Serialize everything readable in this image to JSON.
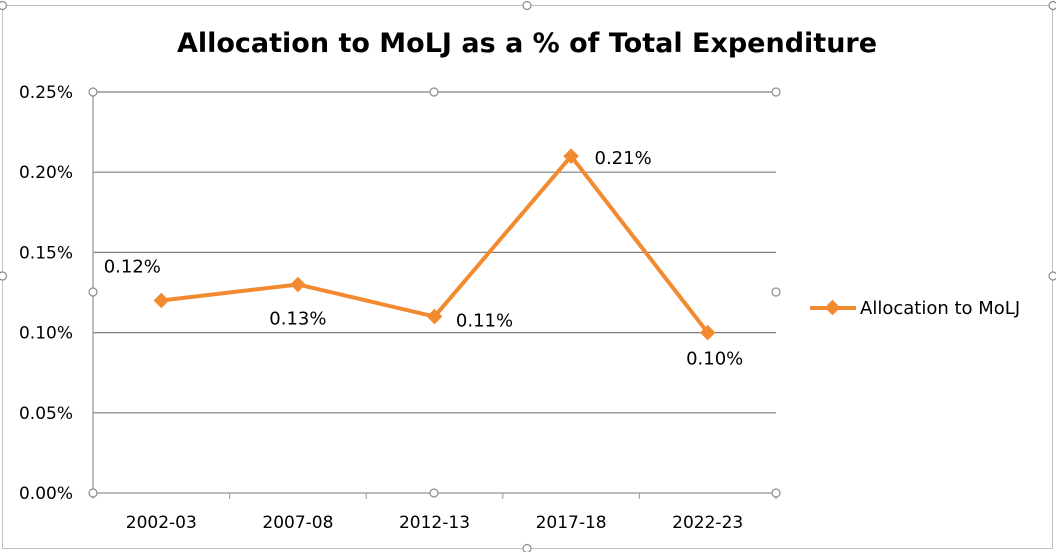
{
  "chart_data": {
    "type": "line",
    "title": "Allocation to MoLJ as a % of Total Expenditure",
    "xlabel": "",
    "ylabel": "",
    "categories": [
      "2002-03",
      "2007-08",
      "2012-13",
      "2017-18",
      "2022-23"
    ],
    "series": [
      {
        "name": "Allocation to MoLJ",
        "values": [
          0.12,
          0.13,
          0.11,
          0.21,
          0.1
        ],
        "data_labels": [
          "0.12%",
          "0.13%",
          "0.11%",
          "0.21%",
          "0.10%"
        ],
        "color": "#f28a30"
      }
    ],
    "ylim": [
      0,
      0.25
    ],
    "yticks": [
      0,
      0.05,
      0.1,
      0.15,
      0.2,
      0.25
    ],
    "ytick_labels": [
      "0.00%",
      "0.05%",
      "0.10%",
      "0.15%",
      "0.20%",
      "0.25%"
    ],
    "grid": true,
    "legend_position": "right",
    "colors": {
      "gridline": "#7f7f7f",
      "axis": "#a6a6a6",
      "frame": "#bfbfbf",
      "handle": "#8c8c8c"
    }
  }
}
